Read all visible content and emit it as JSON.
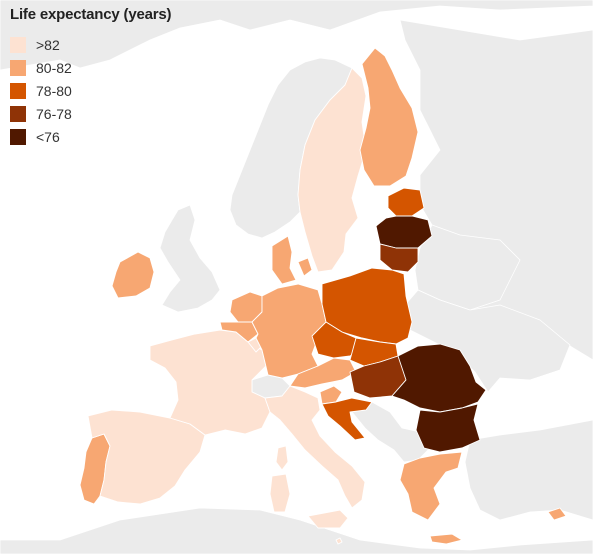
{
  "legend": {
    "title": "Life expectancy (years)",
    "items": [
      {
        "label": ">82",
        "color": "#fde2d2"
      },
      {
        "label": "80-82",
        "color": "#f7a772"
      },
      {
        "label": "78-80",
        "color": "#d45500"
      },
      {
        "label": "76-78",
        "color": "#8f3306"
      },
      {
        "label": "<76",
        "color": "#501800"
      }
    ]
  },
  "colors": {
    "background": "#ffffff",
    "non_eu_land": "#ebebeb",
    "border": "#ffffff"
  },
  "regions": [
    {
      "name": "region-portugal",
      "bin": "80-82"
    },
    {
      "name": "region-spain",
      "bin": ">82"
    },
    {
      "name": "region-france",
      "bin": ">82"
    },
    {
      "name": "region-corsica",
      "bin": ">82"
    },
    {
      "name": "region-italy",
      "bin": ">82"
    },
    {
      "name": "region-sardinia",
      "bin": ">82"
    },
    {
      "name": "region-sicily",
      "bin": ">82"
    },
    {
      "name": "region-ireland",
      "bin": "80-82"
    },
    {
      "name": "region-belgium",
      "bin": "80-82"
    },
    {
      "name": "region-netherlands",
      "bin": "80-82"
    },
    {
      "name": "region-luxembourg",
      "bin": ">82"
    },
    {
      "name": "region-germany",
      "bin": "80-82"
    },
    {
      "name": "region-denmark",
      "bin": "80-82"
    },
    {
      "name": "region-zealand",
      "bin": "80-82"
    },
    {
      "name": "region-sweden",
      "bin": ">82"
    },
    {
      "name": "region-finland",
      "bin": "80-82"
    },
    {
      "name": "region-estonia",
      "bin": "78-80"
    },
    {
      "name": "region-latvia",
      "bin": "<76"
    },
    {
      "name": "region-lithuania",
      "bin": "76-78"
    },
    {
      "name": "region-poland",
      "bin": "78-80"
    },
    {
      "name": "region-czechia",
      "bin": "78-80"
    },
    {
      "name": "region-slovakia",
      "bin": "78-80"
    },
    {
      "name": "region-austria",
      "bin": "80-82"
    },
    {
      "name": "region-slovenia",
      "bin": "80-82"
    },
    {
      "name": "region-hungary",
      "bin": "76-78"
    },
    {
      "name": "region-croatia",
      "bin": "78-80"
    },
    {
      "name": "region-romania",
      "bin": "<76"
    },
    {
      "name": "region-bulgaria",
      "bin": "<76"
    },
    {
      "name": "region-greece",
      "bin": "80-82"
    },
    {
      "name": "region-crete",
      "bin": "80-82"
    },
    {
      "name": "region-cyprus",
      "bin": "80-82"
    },
    {
      "name": "region-malta",
      "bin": ">82"
    }
  ]
}
